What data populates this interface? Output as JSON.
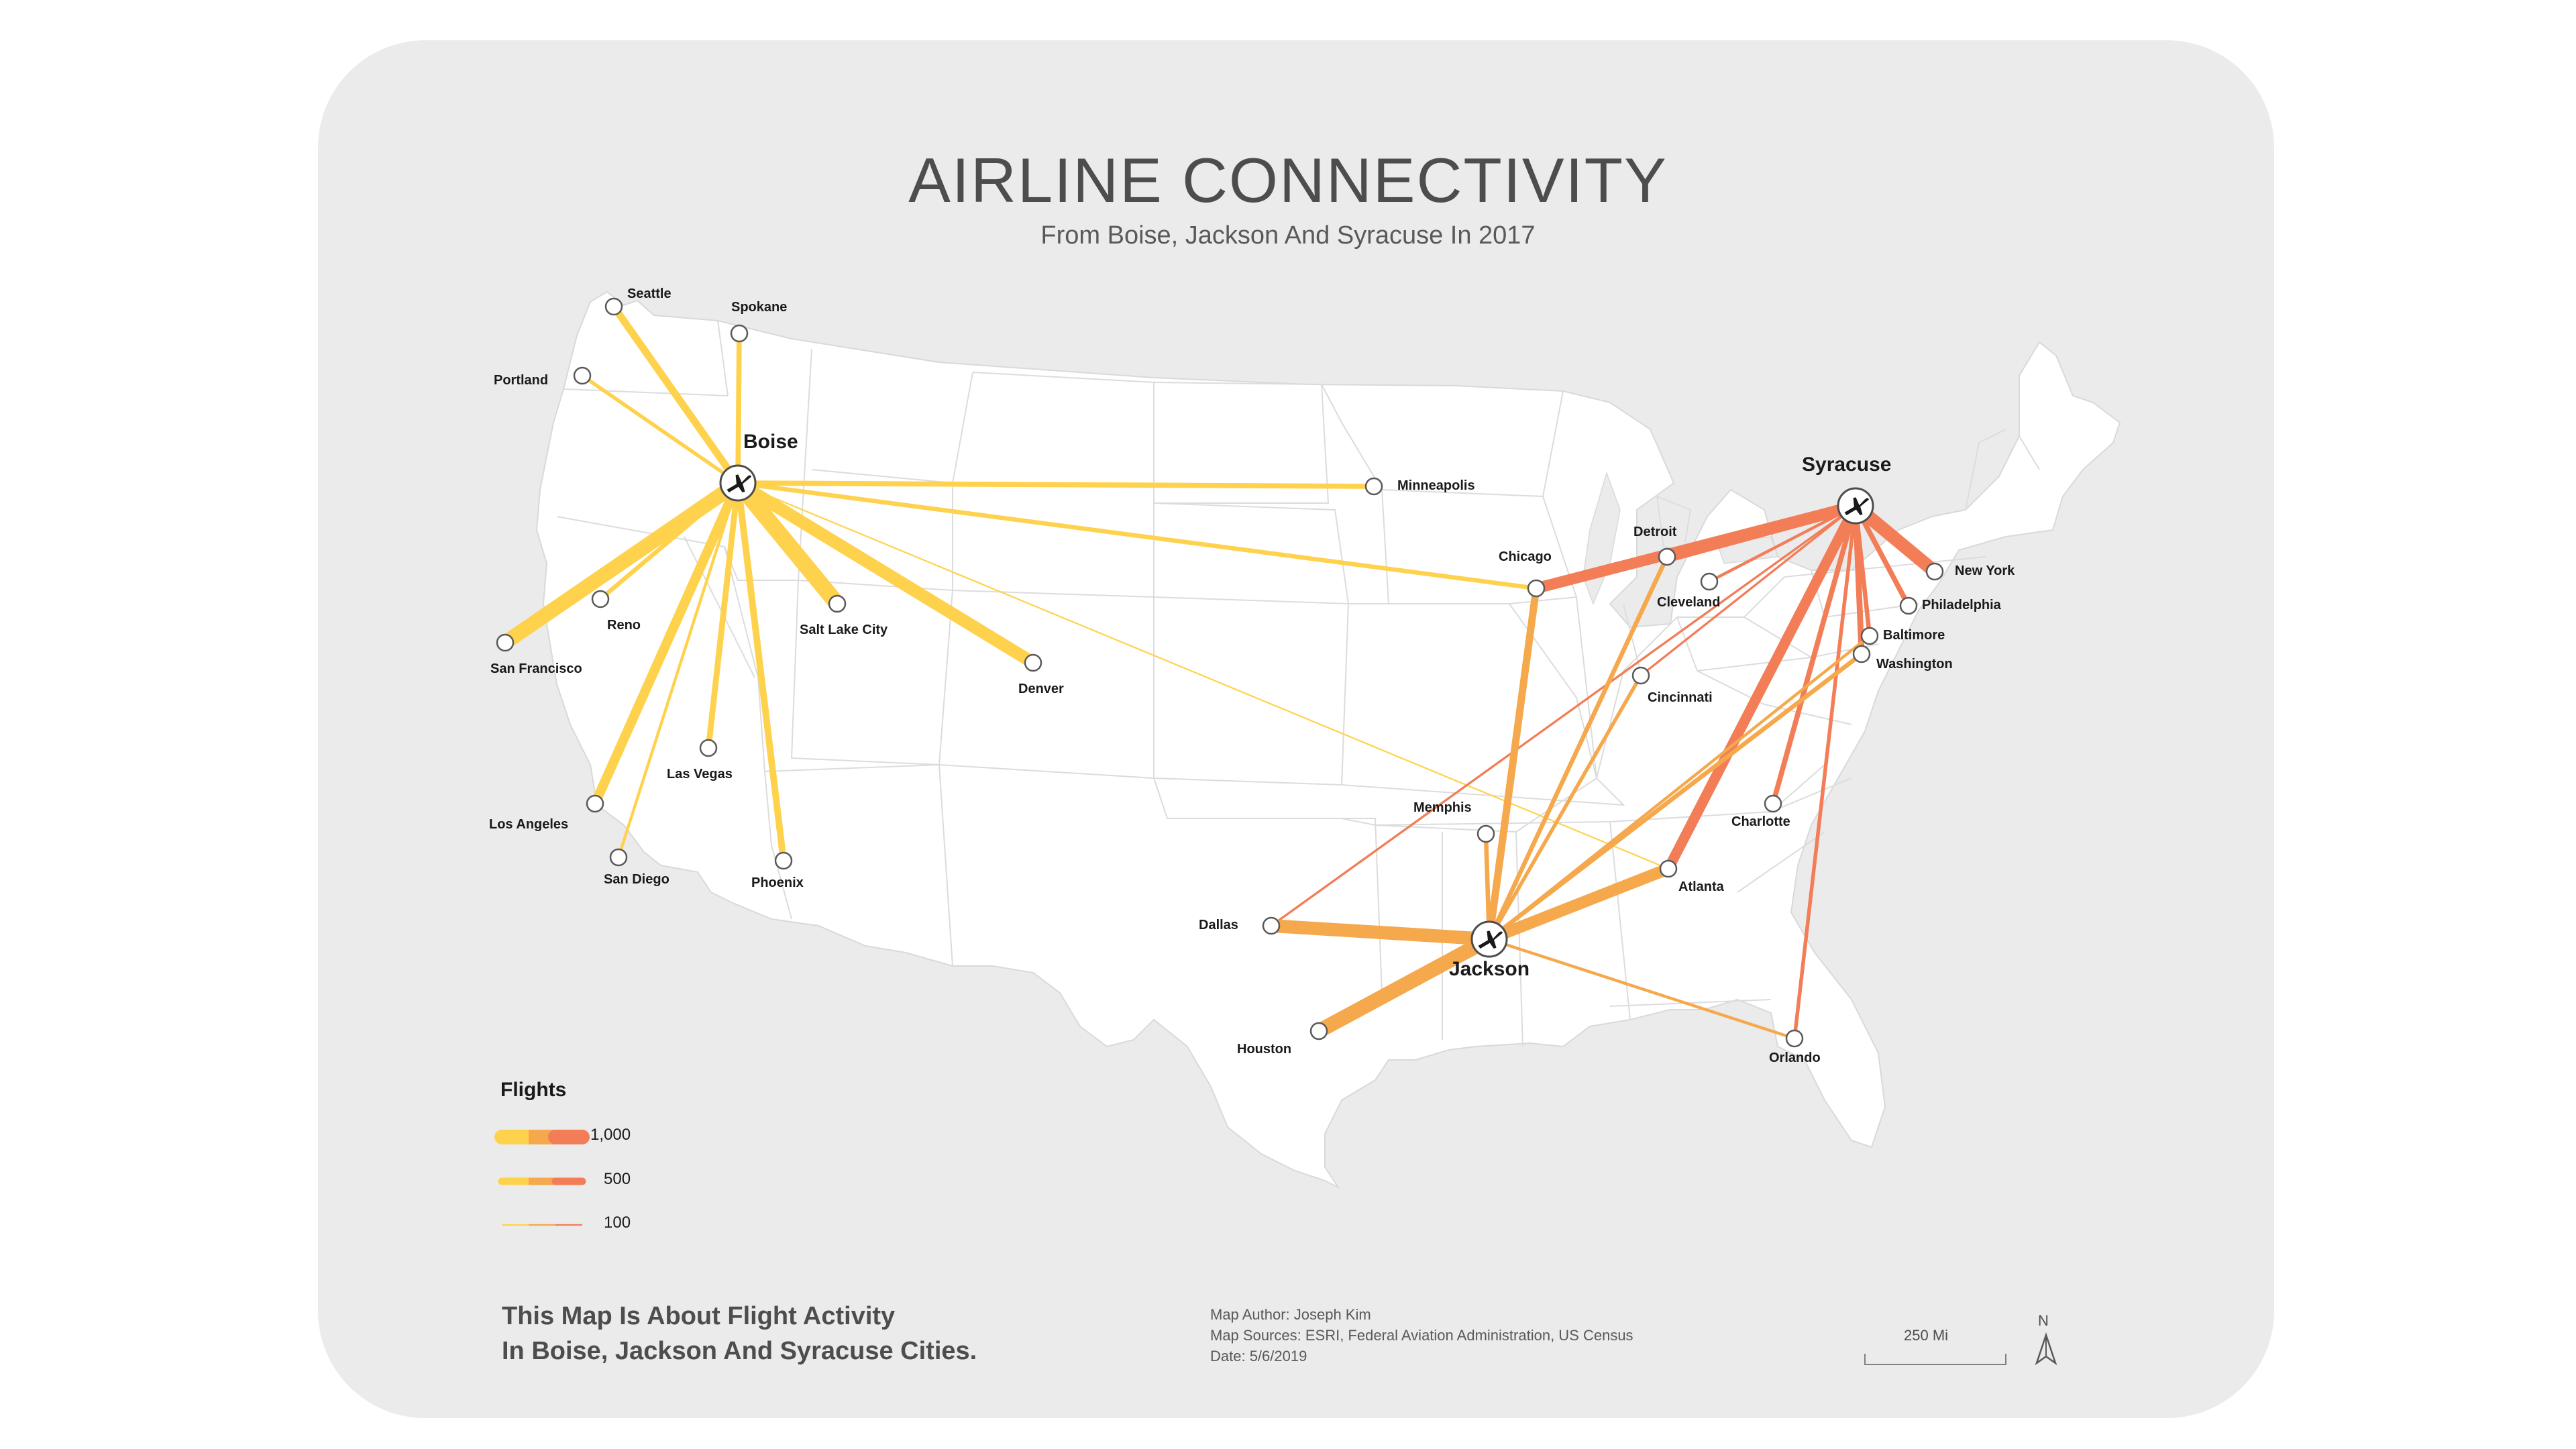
{
  "map": {
    "title": "AIRLINE CONNECTIVITY",
    "subtitle": "From Boise, Jackson And Syracuse In 2017",
    "colors": {
      "background_frame": "#ebebeb",
      "land": "#ffffff",
      "boise": "#ffd24d",
      "jackson": "#f5a84c",
      "syracuse": "#f27d57"
    },
    "hubs": [
      {
        "id": "boise",
        "name": "Boise"
      },
      {
        "id": "syracuse",
        "name": "Syracuse"
      },
      {
        "id": "jackson",
        "name": "Jackson"
      }
    ],
    "cities": [
      {
        "id": "seattle",
        "name": "Seattle"
      },
      {
        "id": "spokane",
        "name": "Spokane"
      },
      {
        "id": "portland",
        "name": "Portland"
      },
      {
        "id": "reno",
        "name": "Reno"
      },
      {
        "id": "sanfrancisco",
        "name": "San Francisco"
      },
      {
        "id": "saltlake",
        "name": "Salt Lake City"
      },
      {
        "id": "denver",
        "name": "Denver"
      },
      {
        "id": "lasvegas",
        "name": "Las Vegas"
      },
      {
        "id": "losangeles",
        "name": "Los Angeles"
      },
      {
        "id": "sandiego",
        "name": "San Diego"
      },
      {
        "id": "phoenix",
        "name": "Phoenix"
      },
      {
        "id": "minneapolis",
        "name": "Minneapolis"
      },
      {
        "id": "chicago",
        "name": "Chicago"
      },
      {
        "id": "detroit",
        "name": "Detroit"
      },
      {
        "id": "cleveland",
        "name": "Cleveland"
      },
      {
        "id": "newyork",
        "name": "New York"
      },
      {
        "id": "philadelphia",
        "name": "Philadelphia"
      },
      {
        "id": "baltimore",
        "name": "Baltimore"
      },
      {
        "id": "washington",
        "name": "Washington"
      },
      {
        "id": "cincinnati",
        "name": "Cincinnati"
      },
      {
        "id": "charlotte",
        "name": "Charlotte"
      },
      {
        "id": "memphis",
        "name": "Memphis"
      },
      {
        "id": "atlanta",
        "name": "Atlanta"
      },
      {
        "id": "dallas",
        "name": "Dallas"
      },
      {
        "id": "houston",
        "name": "Houston"
      },
      {
        "id": "orlando",
        "name": "Orlando"
      }
    ],
    "routes": [
      {
        "hub": "boise",
        "to": "seattle",
        "flights": 500
      },
      {
        "hub": "boise",
        "to": "spokane",
        "flights": 350
      },
      {
        "hub": "boise",
        "to": "portland",
        "flights": 250
      },
      {
        "hub": "boise",
        "to": "sanfrancisco",
        "flights": 1000
      },
      {
        "hub": "boise",
        "to": "reno",
        "flights": 300
      },
      {
        "hub": "boise",
        "to": "saltlake",
        "flights": 1100
      },
      {
        "hub": "boise",
        "to": "denver",
        "flights": 850
      },
      {
        "hub": "boise",
        "to": "lasvegas",
        "flights": 400
      },
      {
        "hub": "boise",
        "to": "losangeles",
        "flights": 650
      },
      {
        "hub": "boise",
        "to": "sandiego",
        "flights": 200
      },
      {
        "hub": "boise",
        "to": "phoenix",
        "flights": 450
      },
      {
        "hub": "boise",
        "to": "minneapolis",
        "flights": 350
      },
      {
        "hub": "boise",
        "to": "chicago",
        "flights": 300
      },
      {
        "hub": "boise",
        "to": "atlanta",
        "flights": 100
      },
      {
        "hub": "syracuse",
        "to": "chicago",
        "flights": 750
      },
      {
        "hub": "syracuse",
        "to": "detroit",
        "flights": 800
      },
      {
        "hub": "syracuse",
        "to": "newyork",
        "flights": 900
      },
      {
        "hub": "syracuse",
        "to": "philadelphia",
        "flights": 350
      },
      {
        "hub": "syracuse",
        "to": "baltimore",
        "flights": 300
      },
      {
        "hub": "syracuse",
        "to": "washington",
        "flights": 400
      },
      {
        "hub": "syracuse",
        "to": "cleveland",
        "flights": 200
      },
      {
        "hub": "syracuse",
        "to": "cincinnati",
        "flights": 150
      },
      {
        "hub": "syracuse",
        "to": "charlotte",
        "flights": 350
      },
      {
        "hub": "syracuse",
        "to": "atlanta",
        "flights": 700
      },
      {
        "hub": "syracuse",
        "to": "orlando",
        "flights": 250
      },
      {
        "hub": "syracuse",
        "to": "dallas",
        "flights": 150
      },
      {
        "hub": "jackson",
        "to": "dallas",
        "flights": 900
      },
      {
        "hub": "jackson",
        "to": "houston",
        "flights": 1000
      },
      {
        "hub": "jackson",
        "to": "atlanta",
        "flights": 800
      },
      {
        "hub": "jackson",
        "to": "chicago",
        "flights": 500
      },
      {
        "hub": "jackson",
        "to": "memphis",
        "flights": 300
      },
      {
        "hub": "jackson",
        "to": "detroit",
        "flights": 300
      },
      {
        "hub": "jackson",
        "to": "cincinnati",
        "flights": 250
      },
      {
        "hub": "jackson",
        "to": "washington",
        "flights": 300
      },
      {
        "hub": "jackson",
        "to": "baltimore",
        "flights": 200
      },
      {
        "hub": "jackson",
        "to": "orlando",
        "flights": 200
      }
    ]
  },
  "legend": {
    "title": "Flights",
    "entries": [
      {
        "label": "1,000",
        "flights": 1000
      },
      {
        "label": "500",
        "flights": 500
      },
      {
        "label": "100",
        "flights": 100
      }
    ]
  },
  "footer": {
    "line1": "This Map Is About Flight Activity",
    "line2": "In Boise, Jackson And Syracuse Cities.",
    "author": "Map Author: Joseph Kim",
    "sources": "Map Sources: ESRI, Federal Aviation Administration, US Census",
    "date": "Date: 5/6/2019",
    "scale_label": "250 Mi",
    "north_label": "N"
  }
}
